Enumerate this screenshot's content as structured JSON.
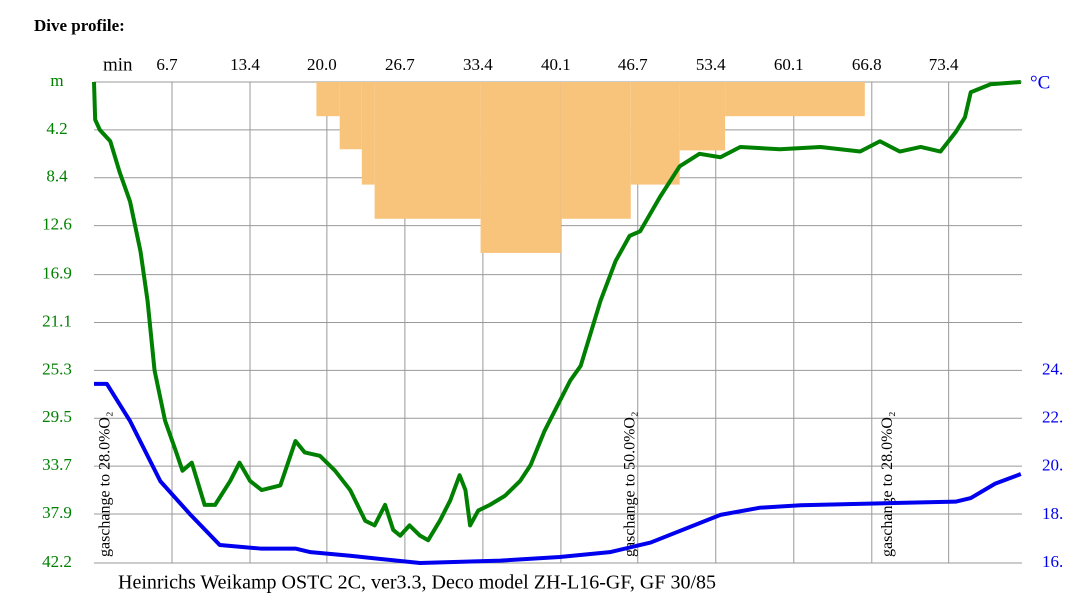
{
  "chart_data": {
    "type": "line",
    "title": "Dive profile:",
    "footer": "Heinrichs Weikamp OSTC 2C, ver3.3, Deco model ZH-L16-GF, GF 30/85",
    "x_label": "min",
    "y2_label": "°C",
    "xlim": [
      0,
      79.7
    ],
    "xticks": [
      6.7,
      13.4,
      {
        "value": 20,
        "label": "20.0"
      },
      26.7,
      33.4,
      40.1,
      46.7,
      53.4,
      60.1,
      66.8,
      73.4
    ],
    "ylim": [
      0,
      42.2
    ],
    "yticks": [
      {
        "value": 0,
        "label": "m"
      },
      4.2,
      8.4,
      12.6,
      16.9,
      21.1,
      25.3,
      29.5,
      33.7,
      37.9,
      42.2
    ],
    "y_reversed": true,
    "y2lim": [
      16,
      36
    ],
    "y2ticks": [
      {
        "value": 24,
        "label": "24."
      },
      {
        "value": 22,
        "label": "22."
      },
      {
        "value": 20,
        "label": "20."
      },
      {
        "value": 18,
        "label": "18."
      },
      {
        "value": 16,
        "label": "16."
      }
    ],
    "grid": true,
    "series": [
      {
        "name": "depth",
        "color": "#008000",
        "x": [
          0,
          0.1,
          0.5,
          1.4,
          2.2,
          3.1,
          4.0,
          4.6,
          5.2,
          6.1,
          7.0,
          7.6,
          8.4,
          9.5,
          10.4,
          11.7,
          12.5,
          13.4,
          14.4,
          16.0,
          17.3,
          18.1,
          19.4,
          20.7,
          22.0,
          23.3,
          24.1,
          25.0,
          25.7,
          26.3,
          27.1,
          28.0,
          28.7,
          29.7,
          30.6,
          31.4,
          31.9,
          32.3,
          33.0,
          34.0,
          35.3,
          36.6,
          37.5,
          38.7,
          40.0,
          40.9,
          41.8,
          43.5,
          44.8,
          46.0,
          46.9,
          48.6,
          50.3,
          52.0,
          53.8,
          55.5,
          58.9,
          62.4,
          65.8,
          67.5,
          69.2,
          71.0,
          72.7,
          74.0,
          74.8,
          75.3,
          77.0,
          79.6
        ],
        "values": [
          0,
          3.3,
          4.2,
          5.2,
          7.9,
          10.5,
          14.9,
          19.2,
          25.3,
          29.7,
          32.3,
          34.1,
          33.4,
          37.1,
          37.1,
          35.0,
          33.4,
          35.0,
          35.8,
          35.4,
          31.5,
          32.5,
          32.8,
          34.1,
          35.8,
          38.5,
          38.9,
          37.1,
          39.3,
          39.8,
          38.9,
          39.8,
          40.2,
          38.5,
          36.7,
          34.5,
          35.8,
          38.9,
          37.6,
          37.1,
          36.3,
          35.0,
          33.6,
          30.6,
          28.0,
          26.2,
          24.9,
          19.2,
          15.7,
          13.5,
          13.1,
          10.1,
          7.4,
          6.3,
          6.6,
          5.7,
          5.9,
          5.7,
          6.1,
          5.2,
          6.1,
          5.7,
          6.1,
          4.4,
          3.1,
          0.9,
          0.2,
          0
        ]
      },
      {
        "name": "temperature",
        "color": "#0000ee",
        "axis": "y2",
        "x": [
          0,
          1.1,
          3.1,
          5.7,
          8.3,
          10.8,
          14.3,
          17.3,
          18.6,
          22.0,
          28.0,
          34.9,
          40.0,
          44.3,
          47.8,
          53.8,
          57.2,
          60.7,
          69.2,
          74.0,
          75.3,
          77.4,
          79.6
        ],
        "values": [
          23.45,
          23.45,
          21.9,
          19.4,
          18.0,
          16.75,
          16.6,
          16.6,
          16.45,
          16.3,
          16.0,
          16.1,
          16.25,
          16.45,
          16.85,
          18.0,
          18.3,
          18.4,
          18.5,
          18.55,
          18.7,
          19.3,
          19.7
        ]
      }
    ],
    "ceiling": {
      "color": "#f8c47c",
      "edges": [
        19.1,
        21.1,
        23.0,
        24.1,
        33.2,
        40.1,
        46.1,
        50.3,
        54.2,
        66.2
      ],
      "values": [
        3.0,
        5.9,
        9.0,
        12.0,
        15.0,
        12.0,
        9.0,
        6.0,
        3.0
      ]
    },
    "annotations": [
      {
        "x": 0.5,
        "text": "gaschange to 28.0%O₂"
      },
      {
        "x": 45.6,
        "text": "gaschange to 50.0%O₂"
      },
      {
        "x": 67.7,
        "text": "gaschange to 28.0%O₂"
      }
    ]
  }
}
